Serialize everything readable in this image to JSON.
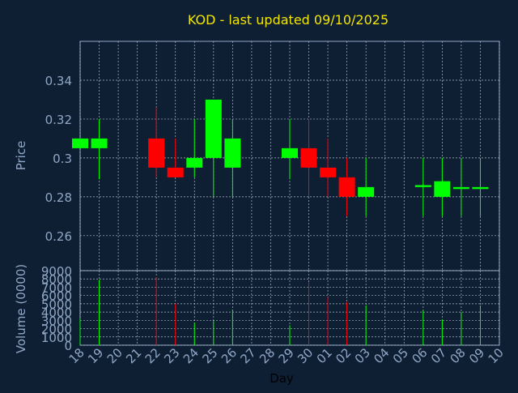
{
  "chart_data": {
    "type": "candlestick",
    "title": "KOD - last updated 09/10/2025",
    "xlabel": "Day",
    "colors": {
      "up": "#00ff00",
      "down": "#ff0000",
      "background": "#0f1f33",
      "axis": "#8fa7c6",
      "title": "#f2e600"
    },
    "x_ticks": [
      "18",
      "19",
      "20",
      "21",
      "22",
      "23",
      "24",
      "25",
      "26",
      "27",
      "28",
      "29",
      "30",
      "01",
      "02",
      "03",
      "04",
      "05",
      "06",
      "07",
      "08",
      "09",
      "10"
    ],
    "price_panel": {
      "ylabel": "Price",
      "ylim": [
        0.242,
        0.36
      ],
      "y_ticks": [
        "0.26",
        "0.28",
        "0.3",
        "0.32",
        "0.34"
      ],
      "y_tick_values": [
        0.26,
        0.28,
        0.3,
        0.32,
        0.34
      ]
    },
    "volume_panel": {
      "ylabel": "Volume (0000)",
      "ylim": [
        0,
        9000
      ],
      "y_ticks": [
        "0",
        "1000",
        "2000",
        "3000",
        "4000",
        "5000",
        "6000",
        "7000",
        "8000",
        "9000"
      ],
      "y_tick_values": [
        0,
        1000,
        2000,
        3000,
        4000,
        5000,
        6000,
        7000,
        8000,
        9000
      ]
    },
    "candles": [
      {
        "day": "18",
        "open": 0.305,
        "high": 0.31,
        "low": 0.305,
        "close": 0.31,
        "volume": 3200
      },
      {
        "day": "19",
        "open": 0.305,
        "high": 0.32,
        "low": 0.289,
        "close": 0.31,
        "volume": 7900
      },
      {
        "day": "22",
        "open": 0.31,
        "high": 0.326,
        "low": 0.29,
        "close": 0.295,
        "volume": 8200
      },
      {
        "day": "23",
        "open": 0.295,
        "high": 0.31,
        "low": 0.29,
        "close": 0.29,
        "volume": 5000
      },
      {
        "day": "24",
        "open": 0.295,
        "high": 0.32,
        "low": 0.29,
        "close": 0.3,
        "volume": 2700
      },
      {
        "day": "25",
        "open": 0.3,
        "high": 0.33,
        "low": 0.28,
        "close": 0.33,
        "volume": 3000
      },
      {
        "day": "26",
        "open": 0.295,
        "high": 0.32,
        "low": 0.28,
        "close": 0.31,
        "volume": 4300
      },
      {
        "day": "29",
        "open": 0.3,
        "high": 0.32,
        "low": 0.289,
        "close": 0.305,
        "volume": 2400
      },
      {
        "day": "30",
        "open": 0.305,
        "high": 0.32,
        "low": 0.28,
        "close": 0.295,
        "volume": 7600
      },
      {
        "day": "01",
        "open": 0.295,
        "high": 0.31,
        "low": 0.28,
        "close": 0.29,
        "volume": 5800
      },
      {
        "day": "02",
        "open": 0.29,
        "high": 0.3,
        "low": 0.27,
        "close": 0.28,
        "volume": 5200
      },
      {
        "day": "03",
        "open": 0.28,
        "high": 0.3,
        "low": 0.27,
        "close": 0.285,
        "volume": 4800
      },
      {
        "day": "06",
        "open": 0.285,
        "high": 0.3,
        "low": 0.27,
        "close": 0.286,
        "volume": 4200
      },
      {
        "day": "07",
        "open": 0.28,
        "high": 0.3,
        "low": 0.27,
        "close": 0.288,
        "volume": 3100
      },
      {
        "day": "08",
        "open": 0.284,
        "high": 0.3,
        "low": 0.27,
        "close": 0.285,
        "volume": 4000
      },
      {
        "day": "09",
        "open": 0.284,
        "high": 0.3,
        "low": 0.27,
        "close": 0.285,
        "volume": 4800
      }
    ]
  }
}
